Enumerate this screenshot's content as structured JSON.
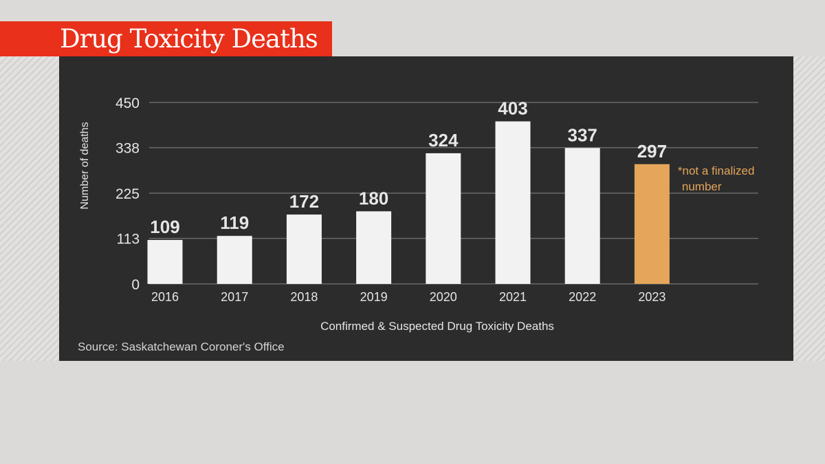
{
  "header": {
    "title": "Drug Toxicity Deaths"
  },
  "source": "Source: Saskatchewan Coroner's Office",
  "chart_data": {
    "type": "bar",
    "categories": [
      "2016",
      "2017",
      "2018",
      "2019",
      "2020",
      "2021",
      "2022",
      "2023"
    ],
    "values": [
      109,
      119,
      172,
      180,
      324,
      403,
      337,
      297
    ],
    "value_labels": [
      "109",
      "119",
      "172",
      "180",
      "324",
      "403",
      "337",
      "297"
    ],
    "highlight_index": 7,
    "ylabel": "Number of deaths",
    "xlabel": "Confirmed & Suspected Drug Toxicity Deaths",
    "yticks": [
      0,
      113,
      225,
      338,
      450
    ],
    "ylim": [
      0,
      450
    ],
    "grid": true,
    "annotation": [
      "*not a finalized",
      "number"
    ],
    "colors": {
      "bar": "#f2f2f2",
      "highlight": "#e5a55a",
      "grid": "#6a6a6a",
      "text": "#e6e6e6",
      "panel": "#2c2c2c"
    }
  }
}
